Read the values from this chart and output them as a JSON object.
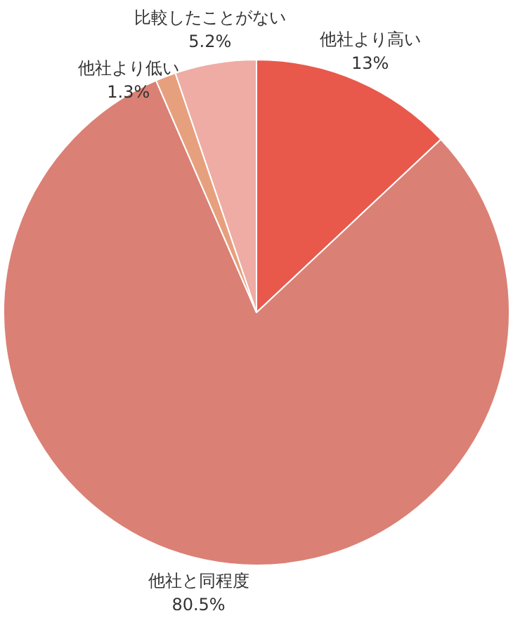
{
  "chart_data": {
    "type": "pie",
    "categories": [
      "他社より高い",
      "他社と同程度",
      "他社より低い",
      "比較したことがない"
    ],
    "values": [
      13,
      80.5,
      1.3,
      5.2
    ],
    "value_labels": [
      "13%",
      "80.5%",
      "1.3%",
      "5.2%"
    ],
    "colors": [
      "#e8594c",
      "#db8075",
      "#e7a07d",
      "#eeaca5"
    ]
  }
}
